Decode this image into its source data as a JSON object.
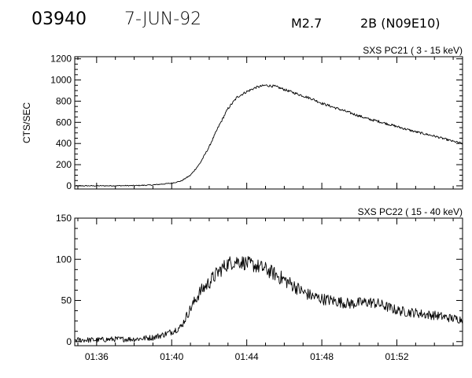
{
  "header": {
    "event_number": "03940",
    "date": "7-JUN-92",
    "flare_class": "M2.7",
    "optical_class": "2B (N09E10)"
  },
  "chart_data": [
    {
      "type": "line",
      "title": "SXS PC21  (  3 - 15 keV)",
      "ylabel": "CTS/SEC",
      "xlabel": "",
      "xlim": [
        "01:34:50",
        "01:55:30"
      ],
      "ylim": [
        -30,
        1220
      ],
      "yticks": [
        0,
        200,
        400,
        600,
        800,
        1000,
        1200
      ],
      "ytick_labels": [
        "0",
        "200",
        "400",
        "600",
        "800",
        "1000",
        "1200"
      ],
      "xtick_labels": [],
      "grid": false,
      "series": [
        {
          "x": [
            "01:34:50",
            "01:36:00",
            "01:38:00",
            "01:39:00",
            "01:40:00",
            "01:40:30",
            "01:41:00",
            "01:41:30",
            "01:42:00",
            "01:42:30",
            "01:43:00",
            "01:43:30",
            "01:44:00",
            "01:44:30",
            "01:45:00",
            "01:45:30",
            "01:46:00",
            "01:46:30",
            "01:47:00",
            "01:47:30",
            "01:48:00",
            "01:48:30",
            "01:49:00",
            "01:49:30",
            "01:50:00",
            "01:50:30",
            "01:51:00",
            "01:51:30",
            "01:52:00",
            "01:52:30",
            "01:53:00",
            "01:53:30",
            "01:54:00",
            "01:54:30",
            "01:55:00",
            "01:55:30"
          ],
          "values": [
            0,
            0,
            2,
            8,
            25,
            45,
            100,
            210,
            370,
            560,
            730,
            840,
            890,
            930,
            950,
            940,
            910,
            880,
            850,
            820,
            780,
            750,
            720,
            690,
            660,
            630,
            610,
            585,
            560,
            535,
            510,
            490,
            470,
            445,
            420,
            400
          ],
          "noise": 12
        }
      ]
    },
    {
      "type": "line",
      "title": "SXS PC22  ( 15 - 40 keV)",
      "ylabel": "",
      "xlabel": "",
      "xlim": [
        "01:34:50",
        "01:55:30"
      ],
      "ylim": [
        -5,
        150
      ],
      "yticks": [
        0,
        50,
        100,
        150
      ],
      "ytick_labels": [
        "0",
        "50",
        "100",
        "150"
      ],
      "xticks": [
        "01:36",
        "01:40",
        "01:44",
        "01:48",
        "01:52"
      ],
      "xtick_labels": [
        "01:36",
        "01:40",
        "01:44",
        "01:48",
        "01:52"
      ],
      "grid": false,
      "series": [
        {
          "x": [
            "01:34:50",
            "01:36:00",
            "01:37:00",
            "01:38:00",
            "01:39:00",
            "01:39:30",
            "01:40:00",
            "01:40:30",
            "01:41:00",
            "01:41:30",
            "01:42:00",
            "01:42:30",
            "01:43:00",
            "01:43:30",
            "01:44:00",
            "01:44:30",
            "01:45:00",
            "01:45:30",
            "01:46:00",
            "01:46:30",
            "01:47:00",
            "01:47:30",
            "01:48:00",
            "01:48:30",
            "01:49:00",
            "01:49:30",
            "01:50:00",
            "01:50:30",
            "01:51:00",
            "01:51:30",
            "01:52:00",
            "01:52:30",
            "01:53:00",
            "01:53:30",
            "01:54:00",
            "01:54:30",
            "01:55:00",
            "01:55:30"
          ],
          "values": [
            2,
            2,
            3,
            3,
            5,
            8,
            12,
            18,
            40,
            60,
            72,
            85,
            95,
            98,
            95,
            92,
            88,
            82,
            75,
            68,
            60,
            55,
            52,
            50,
            48,
            46,
            47,
            48,
            46,
            42,
            38,
            36,
            35,
            33,
            32,
            30,
            28,
            27
          ],
          "noise": 9
        }
      ]
    }
  ]
}
